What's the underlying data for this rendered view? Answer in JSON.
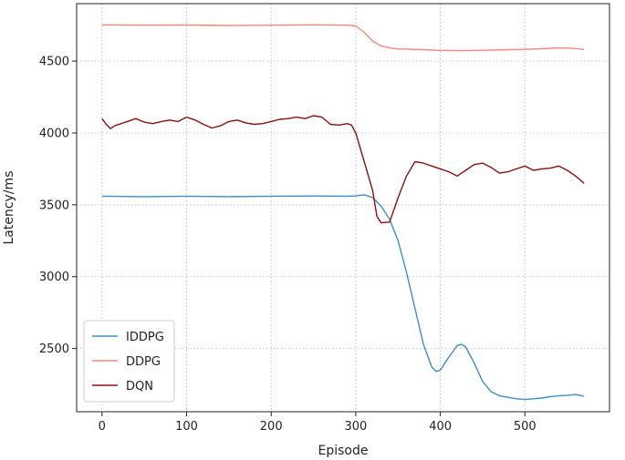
{
  "chart_data": {
    "type": "line",
    "title": "",
    "xlabel": "Episode",
    "ylabel": "Latency/ms",
    "xlim": [
      -30,
      600
    ],
    "ylim": [
      2060,
      4900
    ],
    "xticks": [
      0,
      100,
      200,
      300,
      400,
      500
    ],
    "yticks": [
      2500,
      3000,
      3500,
      4000,
      4500
    ],
    "grid": true,
    "legend_position": "lower-left",
    "series": [
      {
        "name": "IDDPG",
        "color": "#3a8fc8",
        "x": [
          0,
          50,
          100,
          150,
          200,
          250,
          290,
          300,
          310,
          320,
          330,
          340,
          350,
          360,
          370,
          380,
          390,
          395,
          400,
          410,
          420,
          425,
          430,
          440,
          450,
          460,
          470,
          480,
          490,
          500,
          510,
          520,
          530,
          540,
          550,
          560,
          570
        ],
        "y": [
          3560,
          3557,
          3560,
          3557,
          3560,
          3561,
          3560,
          3562,
          3570,
          3550,
          3490,
          3400,
          3250,
          3030,
          2780,
          2530,
          2370,
          2340,
          2350,
          2440,
          2520,
          2530,
          2510,
          2400,
          2270,
          2200,
          2170,
          2160,
          2150,
          2145,
          2150,
          2155,
          2165,
          2170,
          2175,
          2180,
          2168
        ]
      },
      {
        "name": "DDPG",
        "color": "#f8877b",
        "x": [
          0,
          50,
          100,
          150,
          200,
          250,
          290,
          300,
          310,
          320,
          330,
          340,
          350,
          380,
          400,
          420,
          450,
          480,
          500,
          520,
          540,
          560,
          570
        ],
        "y": [
          4752,
          4750,
          4751,
          4748,
          4750,
          4752,
          4750,
          4745,
          4700,
          4640,
          4605,
          4592,
          4585,
          4580,
          4575,
          4572,
          4575,
          4580,
          4582,
          4586,
          4592,
          4588,
          4580
        ]
      },
      {
        "name": "DQN",
        "color": "#8c1010",
        "x": [
          0,
          5,
          10,
          15,
          20,
          30,
          40,
          50,
          60,
          70,
          80,
          90,
          100,
          110,
          120,
          130,
          140,
          150,
          160,
          170,
          180,
          190,
          200,
          210,
          220,
          230,
          240,
          250,
          260,
          270,
          280,
          290,
          295,
          300,
          310,
          320,
          325,
          330,
          340,
          350,
          360,
          370,
          380,
          390,
          400,
          410,
          420,
          430,
          440,
          450,
          460,
          470,
          480,
          490,
          500,
          510,
          520,
          530,
          540,
          550,
          560,
          570
        ],
        "y": [
          4100,
          4060,
          4030,
          4050,
          4060,
          4080,
          4100,
          4075,
          4065,
          4080,
          4090,
          4080,
          4110,
          4090,
          4060,
          4035,
          4050,
          4080,
          4090,
          4070,
          4060,
          4065,
          4080,
          4095,
          4100,
          4110,
          4100,
          4120,
          4110,
          4060,
          4055,
          4065,
          4055,
          4000,
          3800,
          3600,
          3420,
          3375,
          3380,
          3550,
          3700,
          3800,
          3790,
          3770,
          3750,
          3730,
          3700,
          3740,
          3780,
          3790,
          3760,
          3720,
          3730,
          3750,
          3770,
          3740,
          3750,
          3755,
          3770,
          3740,
          3700,
          3650
        ]
      }
    ]
  }
}
